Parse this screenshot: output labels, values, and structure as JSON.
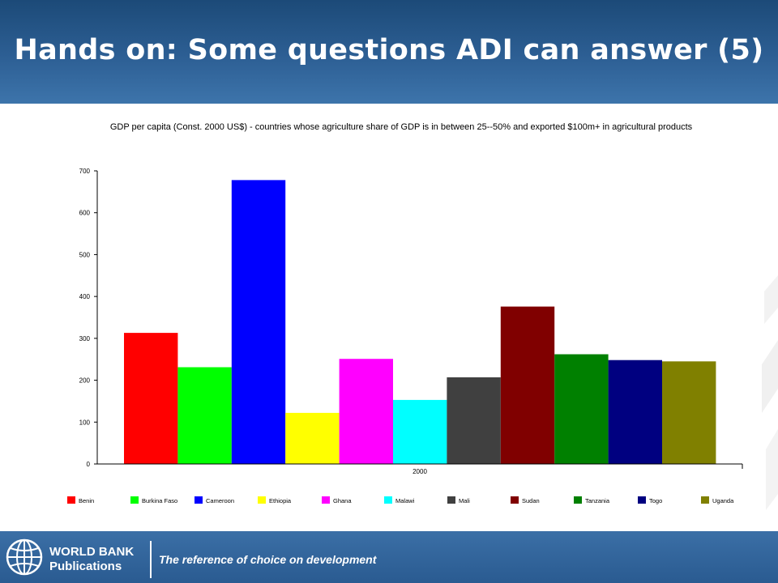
{
  "slide": {
    "title": "Hands on: Some questions ADI can answer (5)"
  },
  "chart_data": {
    "type": "bar",
    "title": "GDP per capita (Const. 2000 US$)  - countries whose agriculture share of GDP is in between 25--50% and exported  $100m+ in agricultural products",
    "categories": [
      "2000"
    ],
    "ylim": [
      0,
      700
    ],
    "yticks": [
      0,
      100,
      200,
      300,
      400,
      500,
      600,
      700
    ],
    "grid": false,
    "legend_position": "bottom",
    "series": [
      {
        "name": "Benin",
        "values": [
          313
        ],
        "color": "#ff0000"
      },
      {
        "name": "Burkina Faso",
        "values": [
          231
        ],
        "color": "#00ff00"
      },
      {
        "name": "Cameroon",
        "values": [
          678
        ],
        "color": "#0000ff"
      },
      {
        "name": "Ethiopia",
        "values": [
          122
        ],
        "color": "#ffff00"
      },
      {
        "name": "Ghana",
        "values": [
          251
        ],
        "color": "#ff00ff"
      },
      {
        "name": "Malawi",
        "values": [
          153
        ],
        "color": "#00ffff"
      },
      {
        "name": "Mali",
        "values": [
          207
        ],
        "color": "#404040"
      },
      {
        "name": "Sudan",
        "values": [
          376
        ],
        "color": "#800000"
      },
      {
        "name": "Tanzania",
        "values": [
          262
        ],
        "color": "#008000"
      },
      {
        "name": "Togo",
        "values": [
          248
        ],
        "color": "#000080"
      },
      {
        "name": "Uganda",
        "values": [
          245
        ],
        "color": "#808000"
      }
    ]
  },
  "footer": {
    "brand_line1": "WORLD BANK",
    "brand_line2": "Publications",
    "tagline": "The reference of choice on development"
  },
  "icons": {
    "logo": "world-bank-globe-icon"
  }
}
